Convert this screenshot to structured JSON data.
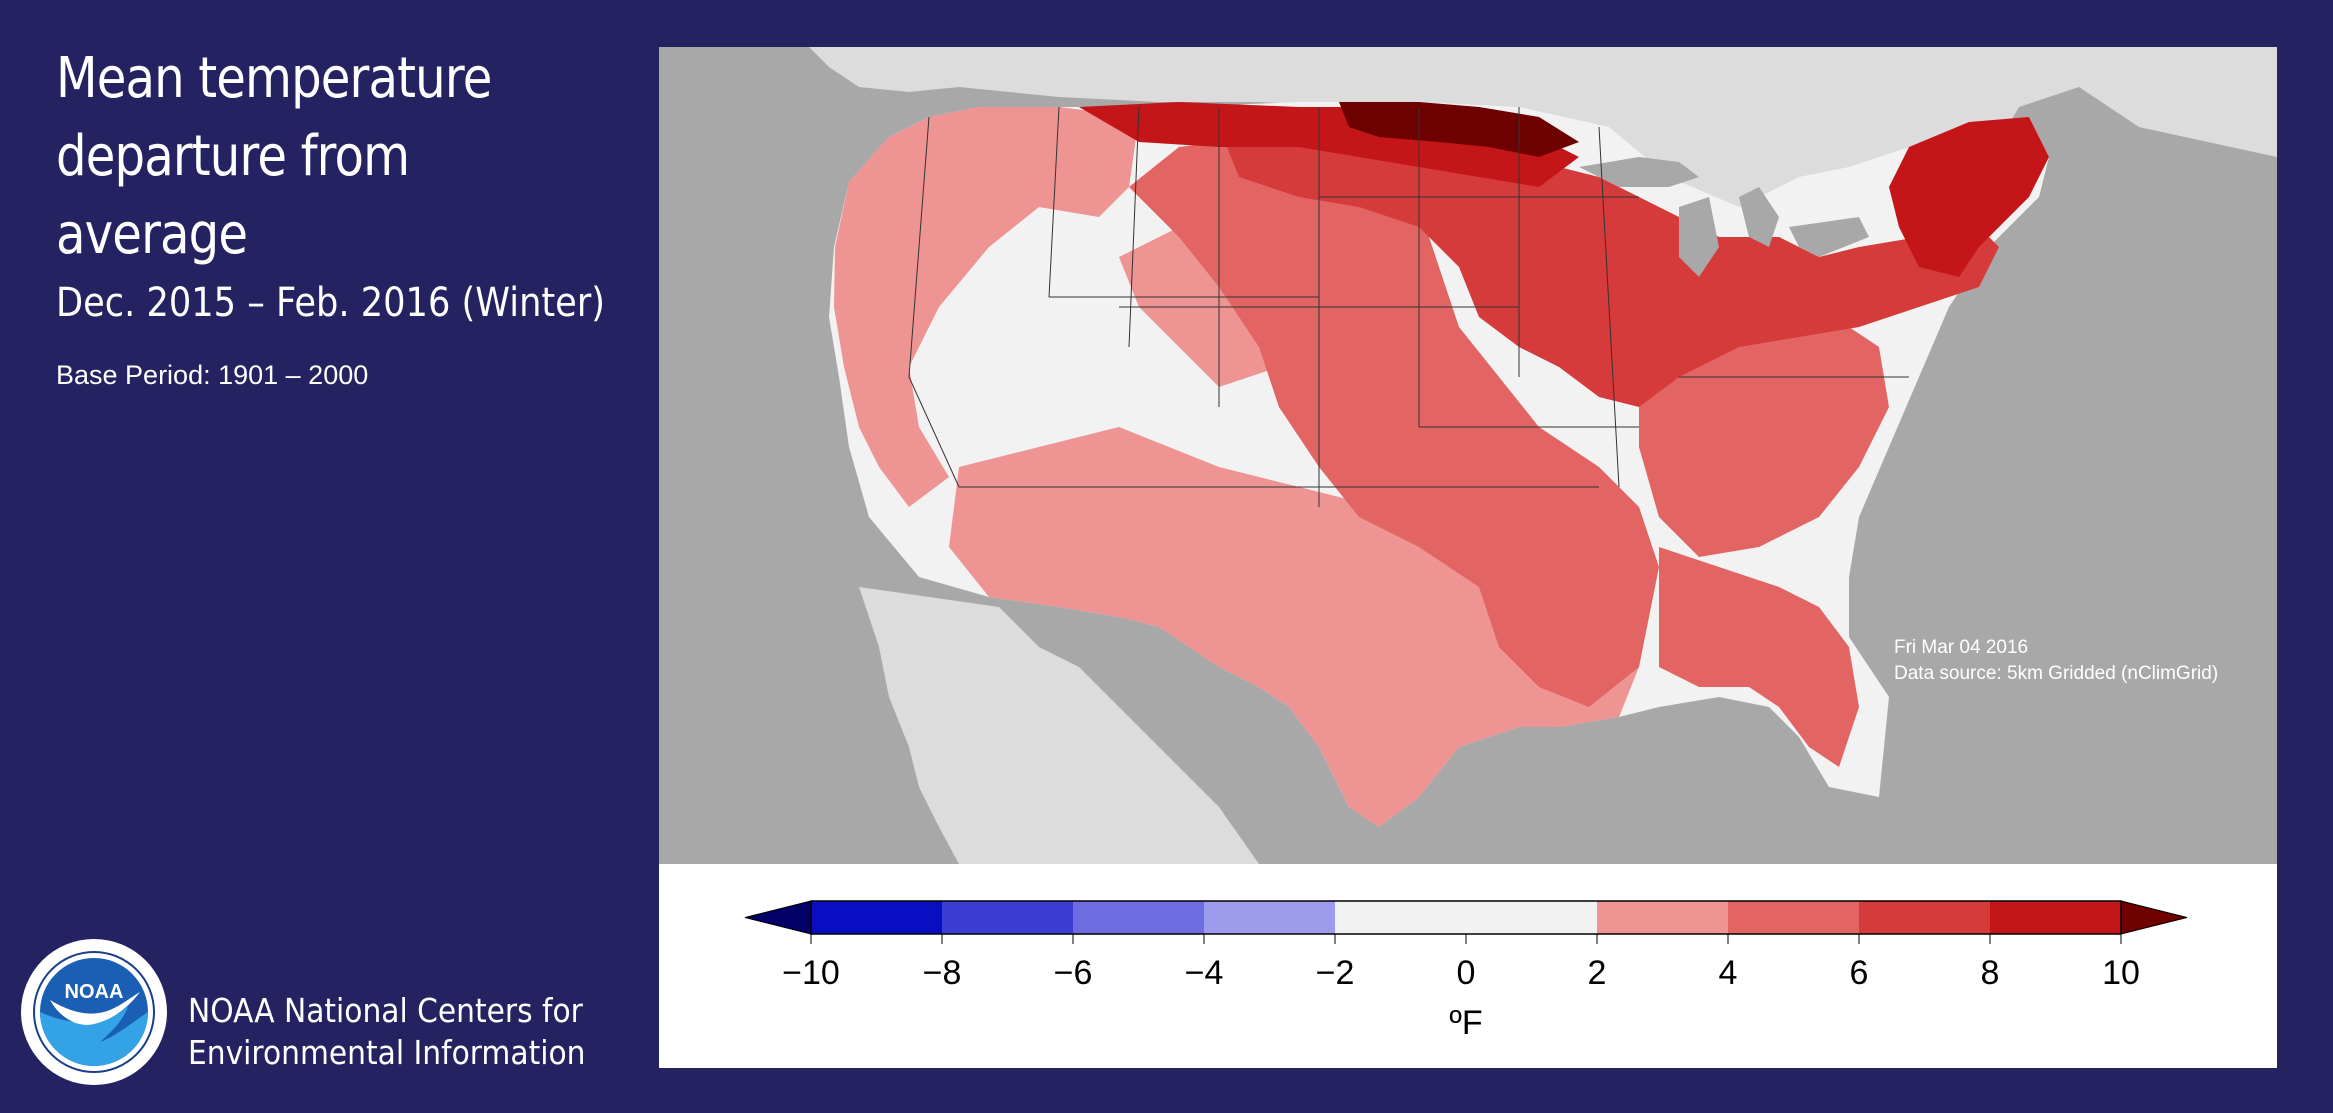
{
  "header": {
    "title_lines": [
      "Mean temperature",
      "departure from",
      "average"
    ],
    "subtitle": "Dec. 2015 – Feb. 2016 (Winter)",
    "base_period": "Base Period: 1901 – 2000"
  },
  "footer": {
    "logo_text": "NOAA",
    "org_lines": [
      "NOAA National Centers for",
      "Environmental Information"
    ]
  },
  "map": {
    "date_stamp": "Fri Mar 04 2016",
    "data_source": "Data source: 5km Gridded (nClimGrid)",
    "colors": {
      "ocean": "#a8a8a8",
      "land_outside": "#dcdcdc",
      "near_normal": "#f2f2f2",
      "warm_2_4": "#ee9493",
      "warm_4_6": "#e26463",
      "warm_6_8": "#d63b3b",
      "warm_8_10": "#c41518",
      "warm_over_10": "#6e0000"
    }
  },
  "legend": {
    "unit": "ºF",
    "ticks": [
      "−10",
      "−8",
      "−6",
      "−4",
      "−2",
      "0",
      "2",
      "4",
      "6",
      "8",
      "10"
    ],
    "colors": [
      "#0a0ec2",
      "#3c3ed3",
      "#6d6ce0",
      "#9d9cec",
      "#f2f2f2",
      "#f2f2f2",
      "#ee9493",
      "#e26463",
      "#d63b3b",
      "#c41518"
    ],
    "low_arrow_color": "#000066",
    "high_arrow_color": "#6e0000"
  }
}
